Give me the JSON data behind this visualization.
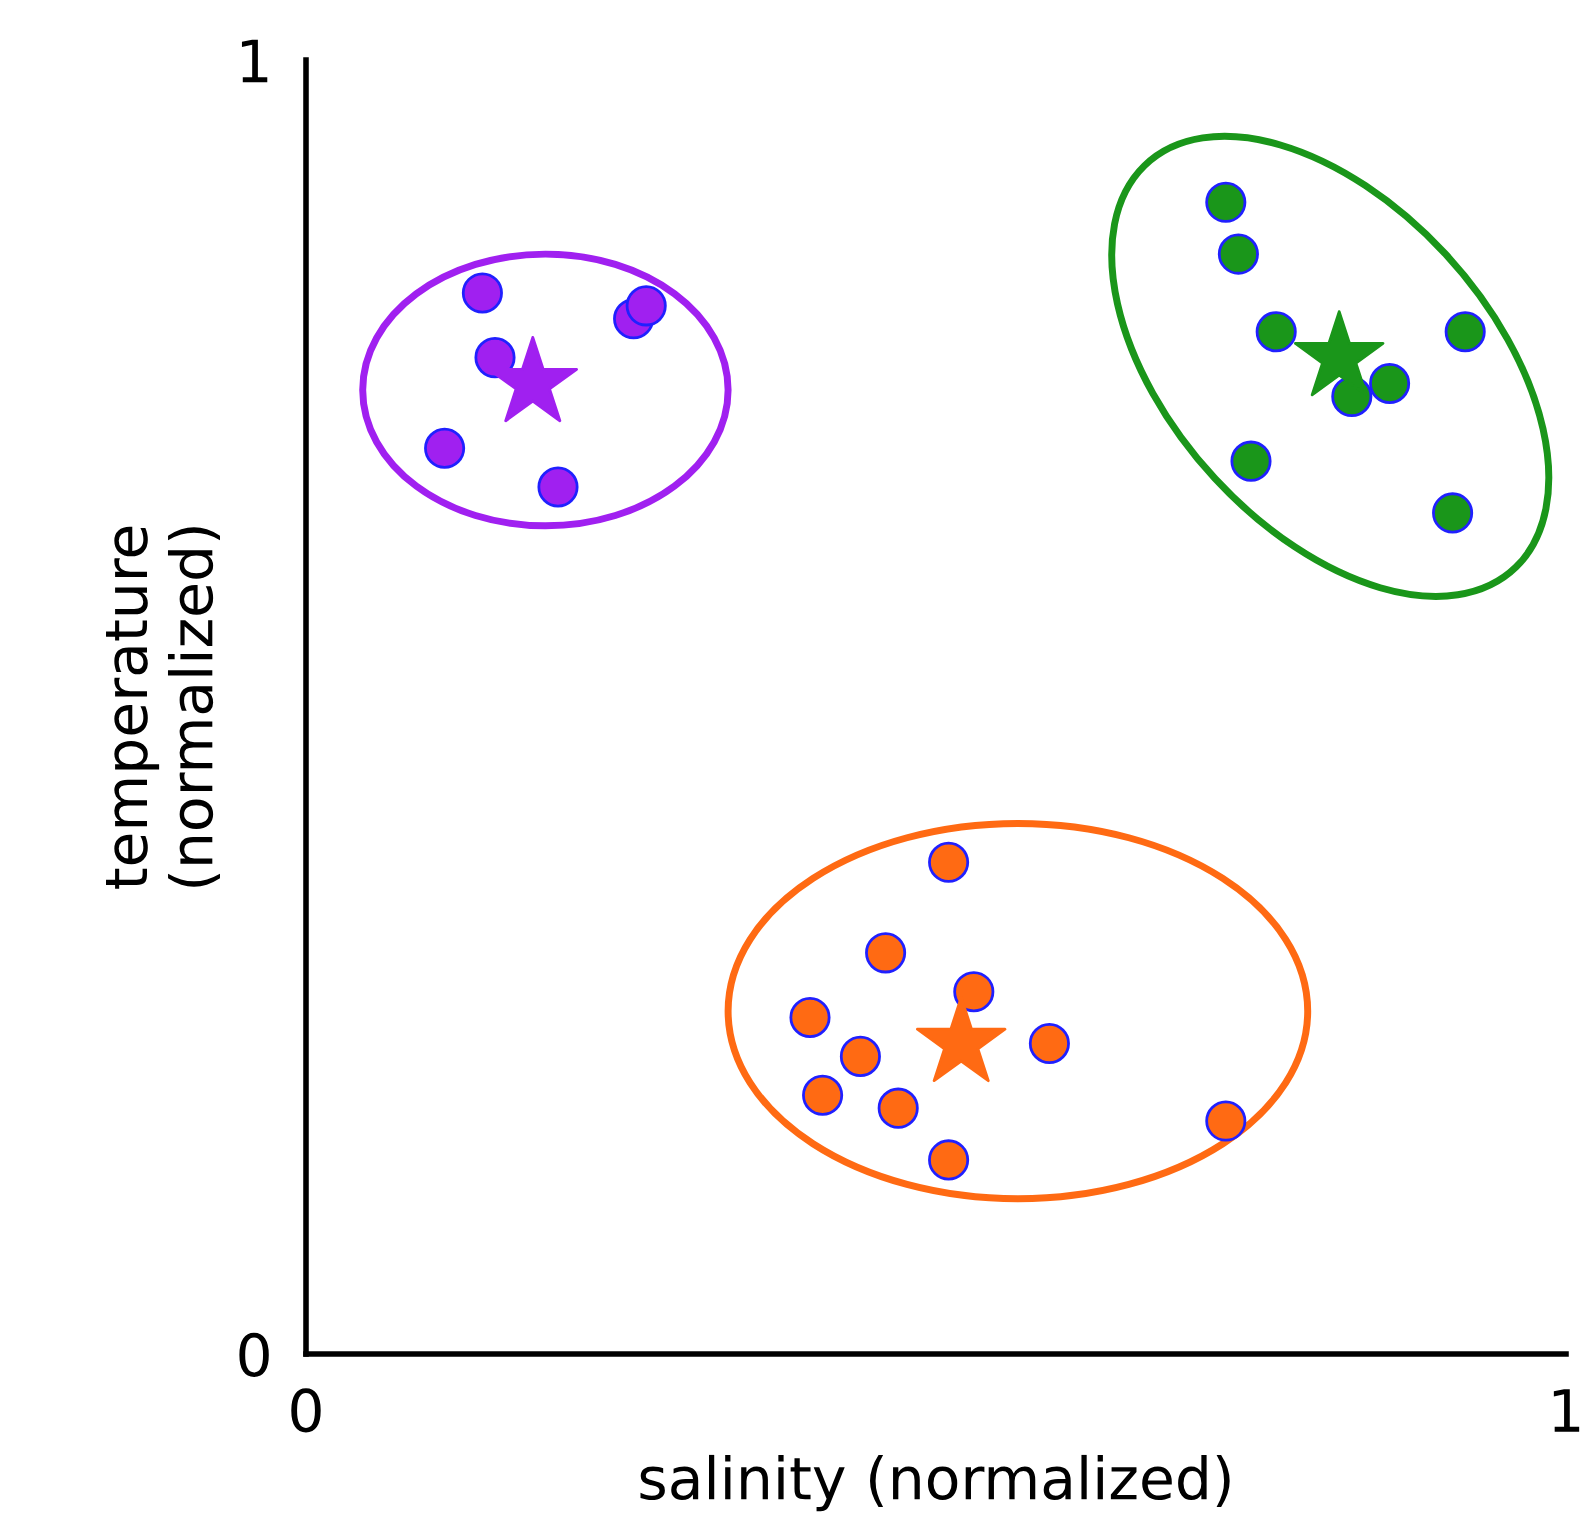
{
  "chart_data": {
    "type": "scatter",
    "xlabel": "salinity (normalized)",
    "ylabel": "temperature\n(normalized)",
    "xlim": [
      0,
      1
    ],
    "ylim": [
      0,
      1
    ],
    "xticks": [
      0,
      1
    ],
    "yticks": [
      0,
      1
    ],
    "grid": false,
    "legend": false,
    "marker": "circle",
    "series": [
      {
        "color": "#a020f0",
        "x": [
          0.14,
          0.15,
          0.11,
          0.2,
          0.26,
          0.27
        ],
        "values": [
          0.82,
          0.77,
          0.7,
          0.67,
          0.8,
          0.81
        ]
      },
      {
        "color": "#a020f0",
        "marker": "star",
        "x": [
          0.18
        ],
        "values": [
          0.75
        ]
      },
      {
        "color": "#1a961a",
        "x": [
          0.73,
          0.74,
          0.77,
          0.92,
          0.86,
          0.83,
          0.75,
          0.91
        ],
        "values": [
          0.89,
          0.85,
          0.79,
          0.79,
          0.75,
          0.74,
          0.69,
          0.65
        ]
      },
      {
        "color": "#1a961a",
        "marker": "star",
        "x": [
          0.82
        ],
        "values": [
          0.77
        ]
      },
      {
        "color": "#ff6a13",
        "x": [
          0.51,
          0.46,
          0.53,
          0.4,
          0.44,
          0.59,
          0.41,
          0.47,
          0.51,
          0.73
        ],
        "values": [
          0.38,
          0.31,
          0.28,
          0.26,
          0.23,
          0.24,
          0.2,
          0.19,
          0.15,
          0.18
        ]
      },
      {
        "color": "#ff6a13",
        "marker": "star",
        "x": [
          0.52
        ],
        "values": [
          0.24
        ]
      }
    ]
  }
}
